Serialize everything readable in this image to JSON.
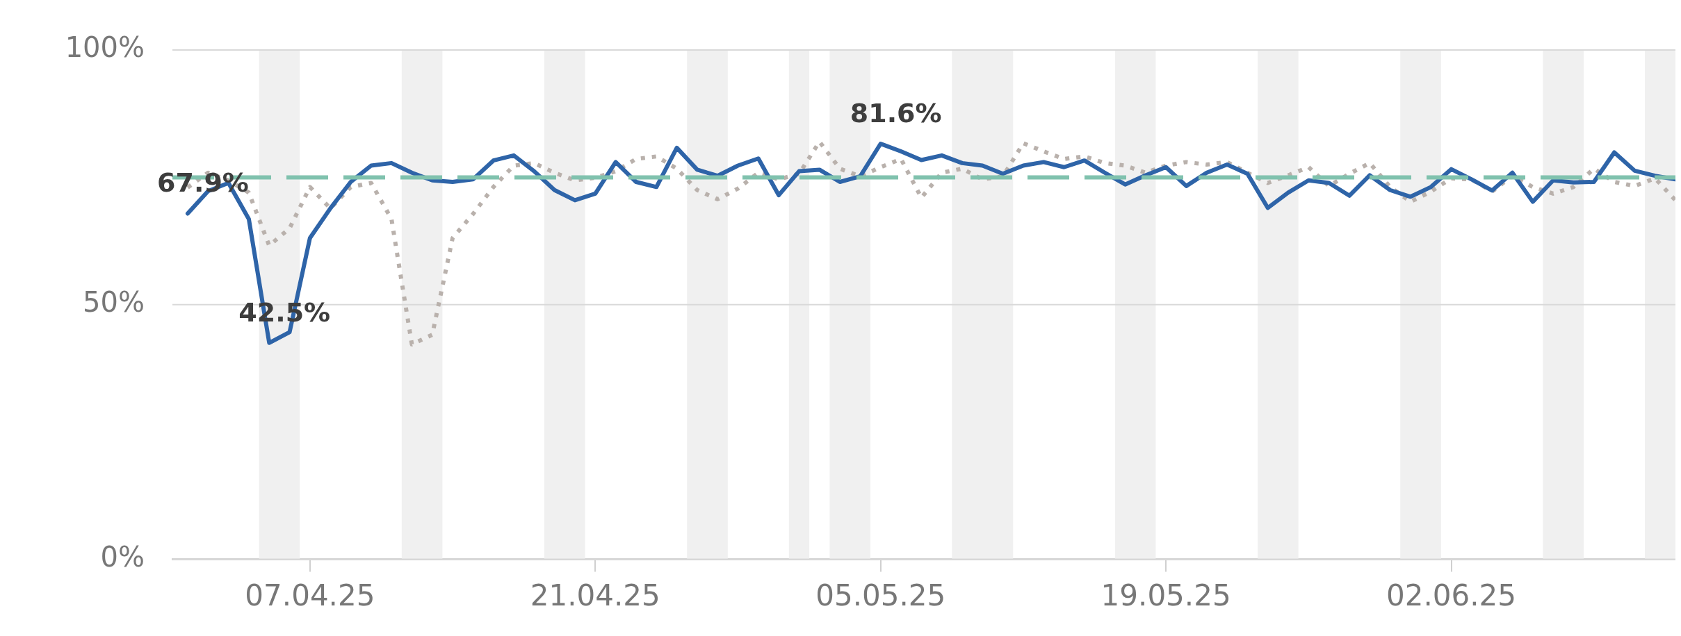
{
  "chart_data": {
    "type": "line",
    "x": [
      "2025-04-01",
      "2025-04-02",
      "2025-04-03",
      "2025-04-04",
      "2025-04-05",
      "2025-04-06",
      "2025-04-07",
      "2025-04-08",
      "2025-04-09",
      "2025-04-10",
      "2025-04-11",
      "2025-04-12",
      "2025-04-13",
      "2025-04-14",
      "2025-04-15",
      "2025-04-16",
      "2025-04-17",
      "2025-04-18",
      "2025-04-19",
      "2025-04-20",
      "2025-04-21",
      "2025-04-22",
      "2025-04-23",
      "2025-04-24",
      "2025-04-25",
      "2025-04-26",
      "2025-04-27",
      "2025-04-28",
      "2025-04-29",
      "2025-04-30",
      "2025-05-01",
      "2025-05-02",
      "2025-05-03",
      "2025-05-04",
      "2025-05-05",
      "2025-05-06",
      "2025-05-07",
      "2025-05-08",
      "2025-05-09",
      "2025-05-10",
      "2025-05-11",
      "2025-05-12",
      "2025-05-13",
      "2025-05-14",
      "2025-05-15",
      "2025-05-16",
      "2025-05-17",
      "2025-05-18",
      "2025-05-19",
      "2025-05-20",
      "2025-05-21",
      "2025-05-22",
      "2025-05-23",
      "2025-05-24",
      "2025-05-25",
      "2025-05-26",
      "2025-05-27",
      "2025-05-28",
      "2025-05-29",
      "2025-05-30",
      "2025-05-31",
      "2025-06-01",
      "2025-06-02",
      "2025-06-03",
      "2025-06-04",
      "2025-06-05",
      "2025-06-06",
      "2025-06-07",
      "2025-06-08",
      "2025-06-09",
      "2025-06-10",
      "2025-06-11",
      "2025-06-12",
      "2025-06-13"
    ],
    "series": [
      {
        "color": "#2e64a8",
        "line_style": "solid",
        "values": [
          67.9,
          72.3,
          73.9,
          66.8,
          42.5,
          44.6,
          63.1,
          68.9,
          74.1,
          77.3,
          77.8,
          75.9,
          74.4,
          74.1,
          74.6,
          78.3,
          79.3,
          76.2,
          72.5,
          70.5,
          71.8,
          78.0,
          74.1,
          73.1,
          80.8,
          76.5,
          75.3,
          77.3,
          78.7,
          71.5,
          76.2,
          76.5,
          74.1,
          75.2,
          81.6,
          80.1,
          78.4,
          79.3,
          77.8,
          77.3,
          75.7,
          77.3,
          78.0,
          77.0,
          78.3,
          75.9,
          73.6,
          75.4,
          77.0,
          73.3,
          75.9,
          77.5,
          75.7,
          69.0,
          72.0,
          74.4,
          73.9,
          71.4,
          75.4,
          72.5,
          71.2,
          73.1,
          76.6,
          74.6,
          72.4,
          75.9,
          70.2,
          74.4,
          74.0,
          74.1,
          79.9,
          76.3,
          75.3,
          74.6
        ],
        "value_labels": [
          "67.9%",
          null,
          null,
          null,
          "42.5%",
          null,
          null,
          null,
          null,
          null,
          null,
          null,
          null,
          null,
          null,
          null,
          null,
          null,
          null,
          null,
          null,
          null,
          null,
          null,
          null,
          null,
          null,
          null,
          null,
          null,
          null,
          null,
          null,
          null,
          "81.6%",
          null,
          null,
          null,
          null,
          null,
          null,
          null,
          null,
          null,
          null,
          null,
          null,
          null,
          null,
          null,
          null,
          null,
          null,
          null,
          null,
          null,
          null,
          null,
          null,
          null,
          null,
          null,
          null,
          null,
          null,
          null,
          null,
          null,
          null,
          null,
          null,
          null,
          null,
          null
        ]
      },
      {
        "color": "#b9b1ac",
        "line_style": "dotted",
        "values": [
          73,
          75.9,
          74.4,
          72.0,
          61.6,
          65.0,
          73.1,
          68.9,
          73.1,
          73.9,
          66.8,
          42.2,
          44.1,
          63.1,
          67.8,
          73.1,
          77.3,
          77.8,
          75.9,
          74.4,
          74.9,
          76.2,
          78.6,
          79.1,
          76.7,
          72.5,
          70.7,
          72.8,
          75.9,
          74.6,
          75.7,
          82.0,
          76.7,
          75.2,
          77.0,
          78.6,
          71.0,
          75.9,
          76.7,
          74.6,
          75.2,
          81.7,
          80.1,
          78.6,
          79.1,
          77.8,
          77.3,
          75.9,
          77.3,
          78.0,
          77.5,
          78.0,
          75.9,
          73.9,
          75.4,
          77.0,
          73.3,
          75.7,
          77.8,
          73.1,
          70.2,
          72.2,
          74.8,
          74.6,
          72.2,
          75.3,
          73.1,
          71.8,
          73.1,
          76.7,
          74.1,
          73.3,
          74.8,
          70.5
        ]
      }
    ],
    "xlim": [
      "2025-03-31T06:00",
      "2025-06-13"
    ],
    "xticks": [
      {
        "value": "2025-04-07",
        "label": "07.04.25"
      },
      {
        "value": "2025-04-21",
        "label": "21.04.25"
      },
      {
        "value": "2025-05-05",
        "label": "05.05.25"
      },
      {
        "value": "2025-05-19",
        "label": "19.05.25"
      },
      {
        "value": "2025-06-02",
        "label": "02.06.25"
      }
    ],
    "ylim": [
      0,
      100
    ],
    "yticks": [
      {
        "value": 0,
        "label": "0%"
      },
      {
        "value": 50,
        "label": "50%"
      },
      {
        "value": 100,
        "label": "100%"
      }
    ],
    "grid": "y",
    "ref_lines": [
      {
        "axis": "y",
        "value": 75,
        "color": "#80c2ae",
        "line_style": "dashed"
      }
    ],
    "bands": [
      {
        "axis": "x",
        "from": "2025-04-04T12:00",
        "to": "2025-04-06T12:00",
        "color": "#f0f0f0"
      },
      {
        "axis": "x",
        "from": "2025-04-11T12:00",
        "to": "2025-04-13T12:00",
        "color": "#f0f0f0"
      },
      {
        "axis": "x",
        "from": "2025-04-18T12:00",
        "to": "2025-04-20T12:00",
        "color": "#f0f0f0"
      },
      {
        "axis": "x",
        "from": "2025-04-25T12:00",
        "to": "2025-04-27T12:00",
        "color": "#f0f0f0"
      },
      {
        "axis": "x",
        "from": "2025-04-30T12:00",
        "to": "2025-05-01T12:00",
        "color": "#f0f0f0"
      },
      {
        "axis": "x",
        "from": "2025-05-02T12:00",
        "to": "2025-05-04T12:00",
        "color": "#f0f0f0"
      },
      {
        "axis": "x",
        "from": "2025-05-08T12:00",
        "to": "2025-05-11T12:00",
        "color": "#f0f0f0"
      },
      {
        "axis": "x",
        "from": "2025-05-16T12:00",
        "to": "2025-05-18T12:00",
        "color": "#f0f0f0"
      },
      {
        "axis": "x",
        "from": "2025-05-23T12:00",
        "to": "2025-05-25T12:00",
        "color": "#f0f0f0"
      },
      {
        "axis": "x",
        "from": "2025-05-30T12:00",
        "to": "2025-06-01T12:00",
        "color": "#f0f0f0"
      },
      {
        "axis": "x",
        "from": "2025-06-06T12:00",
        "to": "2025-06-08T12:00",
        "color": "#f0f0f0"
      },
      {
        "axis": "x",
        "from": "2025-06-11T12:00",
        "to": "2025-06-13",
        "color": "#f0f0f0"
      }
    ]
  }
}
